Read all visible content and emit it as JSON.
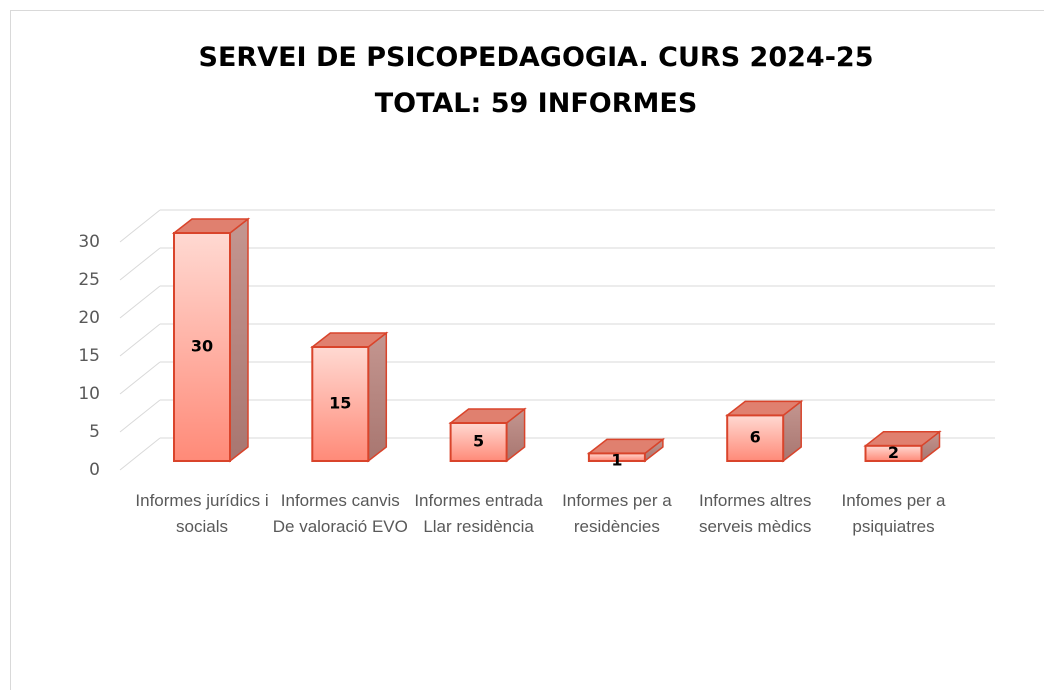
{
  "chart_data": {
    "type": "bar3d",
    "title": "SERVEI DE PSICOPEDAGOGIA.  CURS 2024-25",
    "subtitle": "TOTAL: 59 INFORMES",
    "categories": [
      "Informes jurídics i socials",
      "Informes canvis De valoració EVO",
      "Informes entrada Llar residència",
      "Informes per a residències",
      "Informes altres serveis mèdics",
      "Infomes per a psiquiatres"
    ],
    "values": [
      30,
      15,
      5,
      1,
      6,
      2
    ],
    "color": "#ff8a78",
    "ylim": [
      0,
      30
    ],
    "yticks": [
      0,
      5,
      10,
      15,
      20,
      25,
      30
    ],
    "grid": true
  }
}
